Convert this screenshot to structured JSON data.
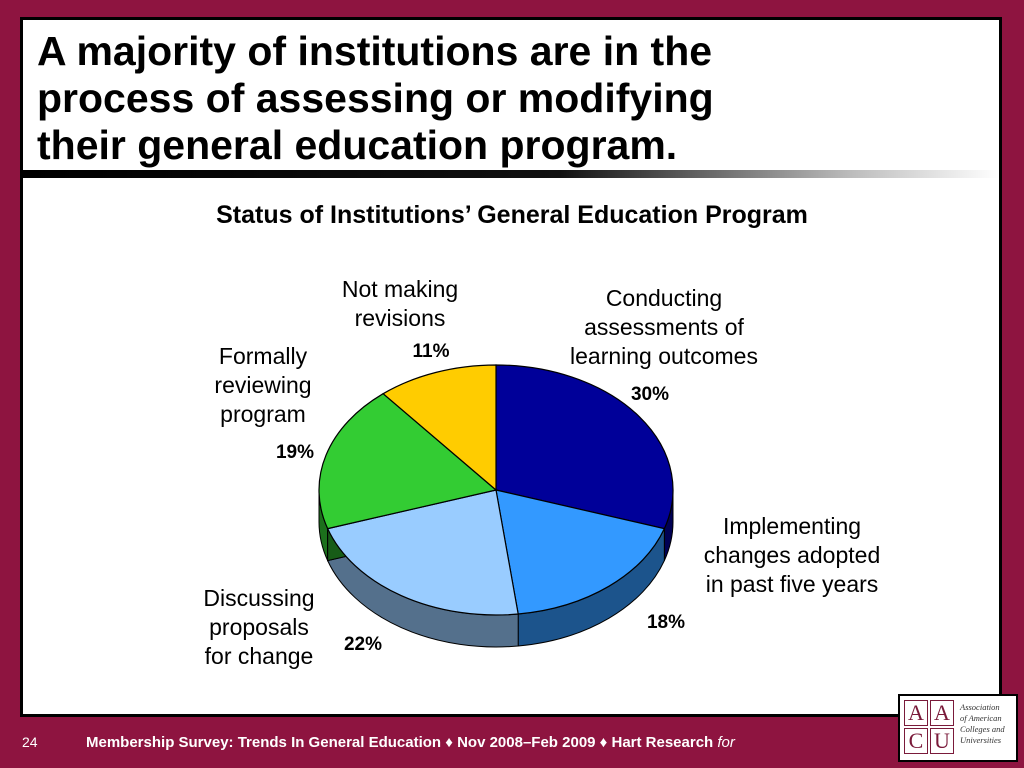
{
  "slide": {
    "title_lines": [
      "A majority of institutions are in the",
      "process of assessing or modifying",
      "their general education program."
    ],
    "number": "24"
  },
  "footer": {
    "text": "Membership Survey: Trends In General Education ♦ Nov 2008–Feb 2009 ♦ Hart Research ",
    "for": "for"
  },
  "logo": {
    "letters": [
      "A",
      "A",
      "C",
      "U"
    ],
    "lines": [
      "Association",
      "of American",
      "Colleges and",
      "Universities"
    ]
  },
  "chart_data": {
    "type": "pie",
    "title": "Status of Institutions’ General Education Program",
    "slices": [
      {
        "label": [
          "Conducting",
          "assessments of",
          "learning outcomes"
        ],
        "value": 30,
        "value_label": "30%",
        "color": "#000099"
      },
      {
        "label": [
          "Implementing",
          "changes adopted",
          "in past five years"
        ],
        "value": 18,
        "value_label": "18%",
        "color": "#3399ff"
      },
      {
        "label": [
          "Discussing",
          "proposals",
          "for change"
        ],
        "value": 22,
        "value_label": "22%",
        "color": "#99ccff"
      },
      {
        "label": [
          "Formally",
          "reviewing",
          "program"
        ],
        "value": 19,
        "value_label": "19%",
        "color": "#33cc33"
      },
      {
        "label": [
          "Not making",
          "revisions"
        ],
        "value": 11,
        "value_label": "11%",
        "color": "#ffcc00"
      }
    ],
    "style": "3d"
  }
}
